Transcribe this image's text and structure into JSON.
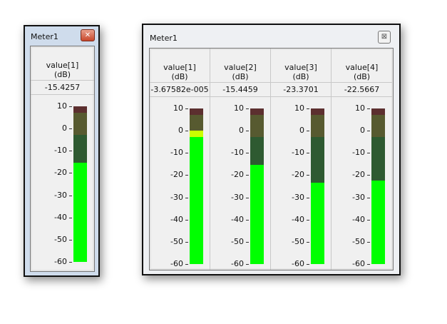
{
  "scale": {
    "max": 10,
    "min": -60,
    "ticks": [
      "10",
      "0",
      "-10",
      "-20",
      "-30",
      "-40",
      "-50",
      "-60"
    ]
  },
  "zones": {
    "red_from": 7,
    "yellow_from": -3
  },
  "colors": {
    "zone_red": "#5c2f2f",
    "zone_yellow": "#575a30",
    "zone_green": "#2e5a31",
    "lit_green": "#00ff00",
    "lit_yellow": "#ccff00",
    "lit_red": "#ff2020"
  },
  "small_window": {
    "title": "Meter1",
    "close_icon": "close-icon",
    "meters": [
      {
        "label": "value[1]",
        "unit": "(dB)",
        "value_text": "-15.4257",
        "value": -15.4257
      }
    ]
  },
  "big_window": {
    "title": "Meter1",
    "close_icon": "close-icon",
    "meters": [
      {
        "label": "value[1]",
        "unit": "(dB)",
        "value_text": "-3.67582e-005",
        "value": -3.67582e-05
      },
      {
        "label": "value[2]",
        "unit": "(dB)",
        "value_text": "-15.4459",
        "value": -15.4459
      },
      {
        "label": "value[3]",
        "unit": "(dB)",
        "value_text": "-23.3701",
        "value": -23.3701
      },
      {
        "label": "value[4]",
        "unit": "(dB)",
        "value_text": "-22.5667",
        "value": -22.5667
      }
    ]
  }
}
